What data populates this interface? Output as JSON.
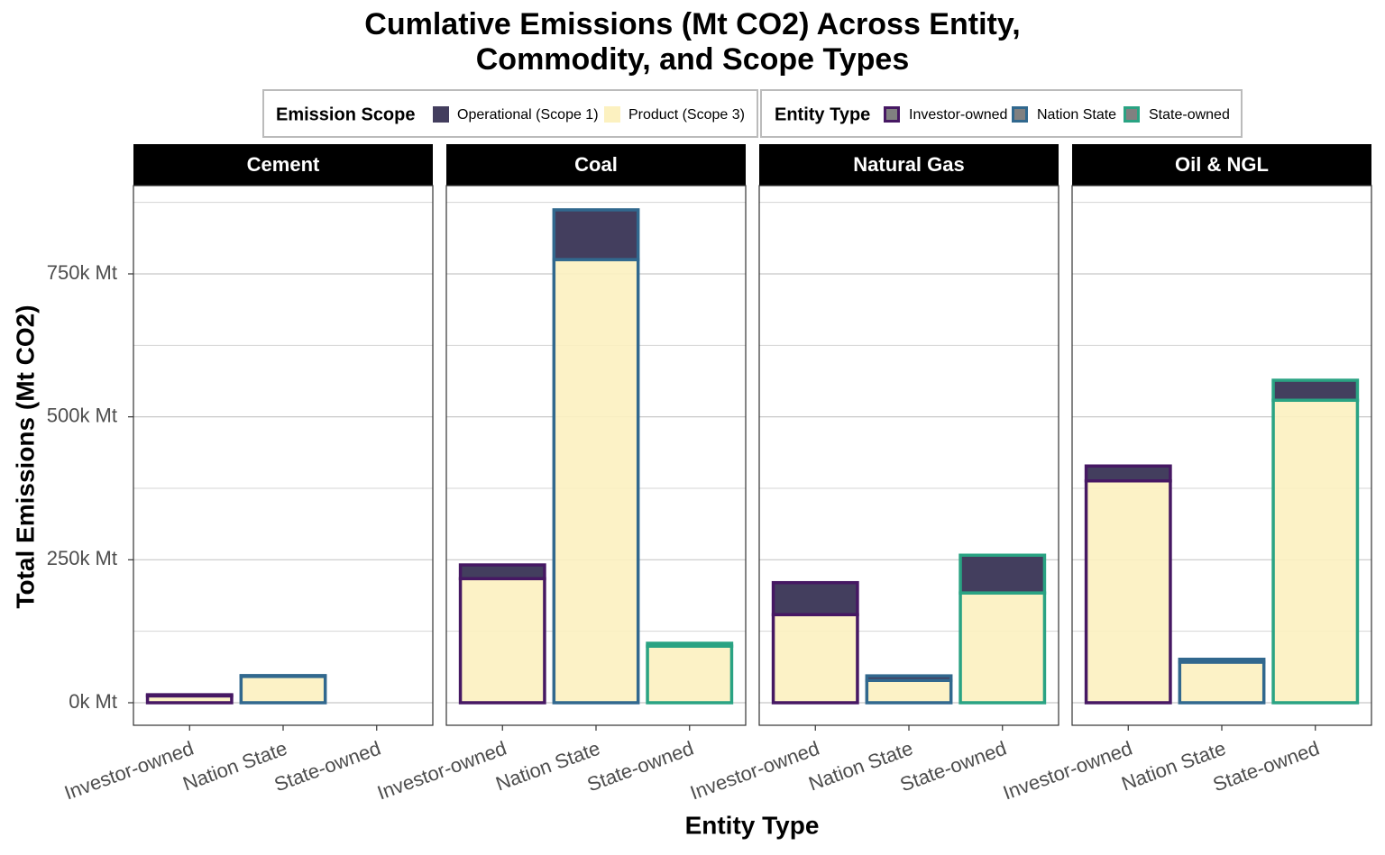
{
  "chart_data": {
    "type": "bar",
    "stacked": true,
    "title": "Cumlative Emissions (Mt CO2) Across Entity, Commodity, and Scope Types",
    "x_label": "Entity Type",
    "y_label": "Total Emissions (Mt CO2)",
    "facets": [
      "Cement",
      "Coal",
      "Natural Gas",
      "Oil & NGL"
    ],
    "categories": [
      "Investor-owned",
      "Nation State",
      "State-owned"
    ],
    "legend_title": "Emission Scope",
    "series": [
      {
        "name": "Operational (Scope 1)",
        "color": "#433e5e",
        "values": [
          [
            2000,
            1500,
            0
          ],
          [
            24000,
            87000,
            5000
          ],
          [
            56000,
            8000,
            66000
          ],
          [
            26000,
            5000,
            35000
          ]
        ]
      },
      {
        "name": "Product (Scope 3)",
        "color": "#fcf1c0",
        "values": [
          [
            12000,
            46000,
            0
          ],
          [
            217000,
            775000,
            99000
          ],
          [
            154000,
            39000,
            192000
          ],
          [
            388000,
            71000,
            529000
          ]
        ]
      }
    ],
    "category_legend": {
      "title": "Entity Type",
      "key_fill": "#808080",
      "colors": [
        "#461863",
        "#31688e",
        "#2aa383"
      ]
    },
    "ylim": [
      -39400,
      904400
    ],
    "yticks": [
      {
        "value": 0,
        "label": "0k Mt"
      },
      {
        "value": 250000,
        "label": "250k Mt"
      },
      {
        "value": 500000,
        "label": "500k Mt"
      },
      {
        "value": 750000,
        "label": "750k Mt"
      }
    ],
    "y_minor_ticks": [
      125000,
      375000,
      625000,
      875000
    ],
    "grid": true
  }
}
